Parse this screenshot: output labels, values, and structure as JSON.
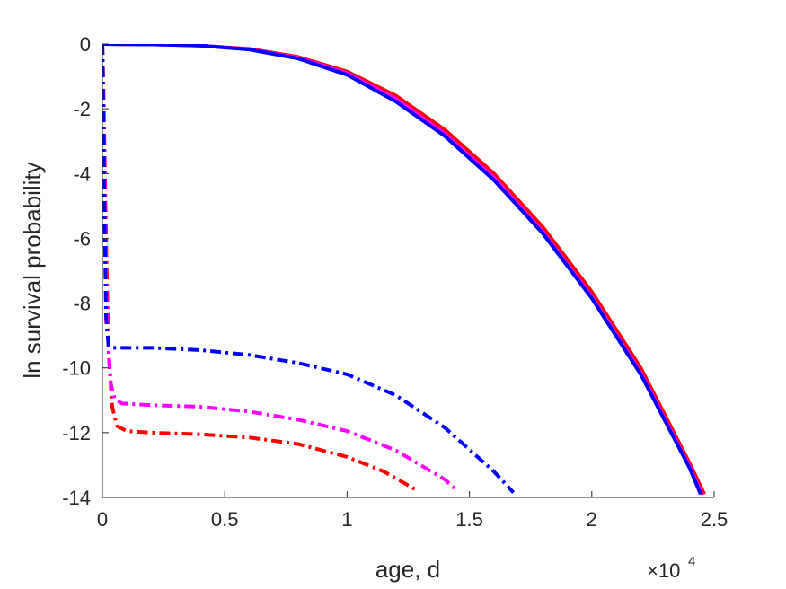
{
  "chart_data": {
    "type": "line",
    "xlabel": "age, d",
    "ylabel": "ln survival probability",
    "x_multiplier": {
      "base": "×10",
      "exponent": "4"
    },
    "xlim": [
      0,
      25000
    ],
    "ylim": [
      -14,
      0
    ],
    "x_ticks": [
      0,
      5000,
      10000,
      15000,
      20000,
      25000
    ],
    "x_tick_labels": [
      "0",
      "0.5",
      "1",
      "1.5",
      "2",
      "2.5"
    ],
    "y_ticks": [
      0,
      -2,
      -4,
      -6,
      -8,
      -10,
      -12,
      -14
    ],
    "y_tick_labels": [
      "0",
      "-2",
      "-4",
      "-6",
      "-8",
      "-10",
      "-12",
      "-14"
    ],
    "grid": false,
    "series": [
      {
        "color": "#ff0000",
        "style": "solid",
        "points": [
          [
            0,
            0
          ],
          [
            2000,
            -0.01
          ],
          [
            4000,
            -0.05
          ],
          [
            6000,
            -0.15
          ],
          [
            8000,
            -0.4
          ],
          [
            10000,
            -0.85
          ],
          [
            12000,
            -1.6
          ],
          [
            14000,
            -2.65
          ],
          [
            16000,
            -4.0
          ],
          [
            18000,
            -5.65
          ],
          [
            20000,
            -7.65
          ],
          [
            22000,
            -10.0
          ],
          [
            24000,
            -12.95
          ],
          [
            24600,
            -13.9
          ]
        ]
      },
      {
        "color": "#ff00ff",
        "style": "solid",
        "points": [
          [
            0,
            0
          ],
          [
            2000,
            -0.01
          ],
          [
            4000,
            -0.05
          ],
          [
            6000,
            -0.16
          ],
          [
            8000,
            -0.42
          ],
          [
            10000,
            -0.9
          ],
          [
            12000,
            -1.7
          ],
          [
            14000,
            -2.78
          ],
          [
            16000,
            -4.12
          ],
          [
            18000,
            -5.8
          ],
          [
            20000,
            -7.8
          ],
          [
            22000,
            -10.15
          ],
          [
            24000,
            -13.05
          ],
          [
            24500,
            -13.9
          ]
        ]
      },
      {
        "color": "#0000ff",
        "style": "solid",
        "points": [
          [
            0,
            0
          ],
          [
            2000,
            -0.01
          ],
          [
            4000,
            -0.05
          ],
          [
            6000,
            -0.17
          ],
          [
            8000,
            -0.45
          ],
          [
            10000,
            -0.95
          ],
          [
            12000,
            -1.78
          ],
          [
            14000,
            -2.85
          ],
          [
            16000,
            -4.2
          ],
          [
            18000,
            -5.85
          ],
          [
            20000,
            -7.85
          ],
          [
            22000,
            -10.2
          ],
          [
            24000,
            -13.1
          ],
          [
            24450,
            -13.9
          ]
        ]
      },
      {
        "color": "#ff0000",
        "style": "dashdot",
        "points": [
          [
            0,
            0
          ],
          [
            60,
            -2
          ],
          [
            150,
            -6
          ],
          [
            250,
            -9.5
          ],
          [
            400,
            -11.2
          ],
          [
            600,
            -11.8
          ],
          [
            1000,
            -11.95
          ],
          [
            2000,
            -12.0
          ],
          [
            4000,
            -12.05
          ],
          [
            6000,
            -12.15
          ],
          [
            8000,
            -12.35
          ],
          [
            10000,
            -12.75
          ],
          [
            11500,
            -13.2
          ],
          [
            12900,
            -13.8
          ]
        ]
      },
      {
        "color": "#ff00ff",
        "style": "dashdot",
        "points": [
          [
            0,
            0
          ],
          [
            60,
            -2
          ],
          [
            120,
            -6
          ],
          [
            200,
            -8.8
          ],
          [
            350,
            -10.5
          ],
          [
            500,
            -10.95
          ],
          [
            800,
            -11.1
          ],
          [
            2000,
            -11.15
          ],
          [
            4000,
            -11.2
          ],
          [
            6000,
            -11.35
          ],
          [
            8000,
            -11.6
          ],
          [
            10000,
            -11.95
          ],
          [
            12000,
            -12.55
          ],
          [
            14000,
            -13.45
          ],
          [
            14500,
            -13.8
          ]
        ]
      },
      {
        "color": "#0000ff",
        "style": "dashdot",
        "points": [
          [
            0,
            0
          ],
          [
            40,
            -2
          ],
          [
            80,
            -5
          ],
          [
            150,
            -8.5
          ],
          [
            250,
            -9.3
          ],
          [
            400,
            -9.38
          ],
          [
            2000,
            -9.38
          ],
          [
            4000,
            -9.45
          ],
          [
            6000,
            -9.6
          ],
          [
            8000,
            -9.85
          ],
          [
            10000,
            -10.2
          ],
          [
            12000,
            -10.85
          ],
          [
            14000,
            -11.85
          ],
          [
            16000,
            -13.2
          ],
          [
            16800,
            -13.85
          ]
        ]
      }
    ]
  }
}
